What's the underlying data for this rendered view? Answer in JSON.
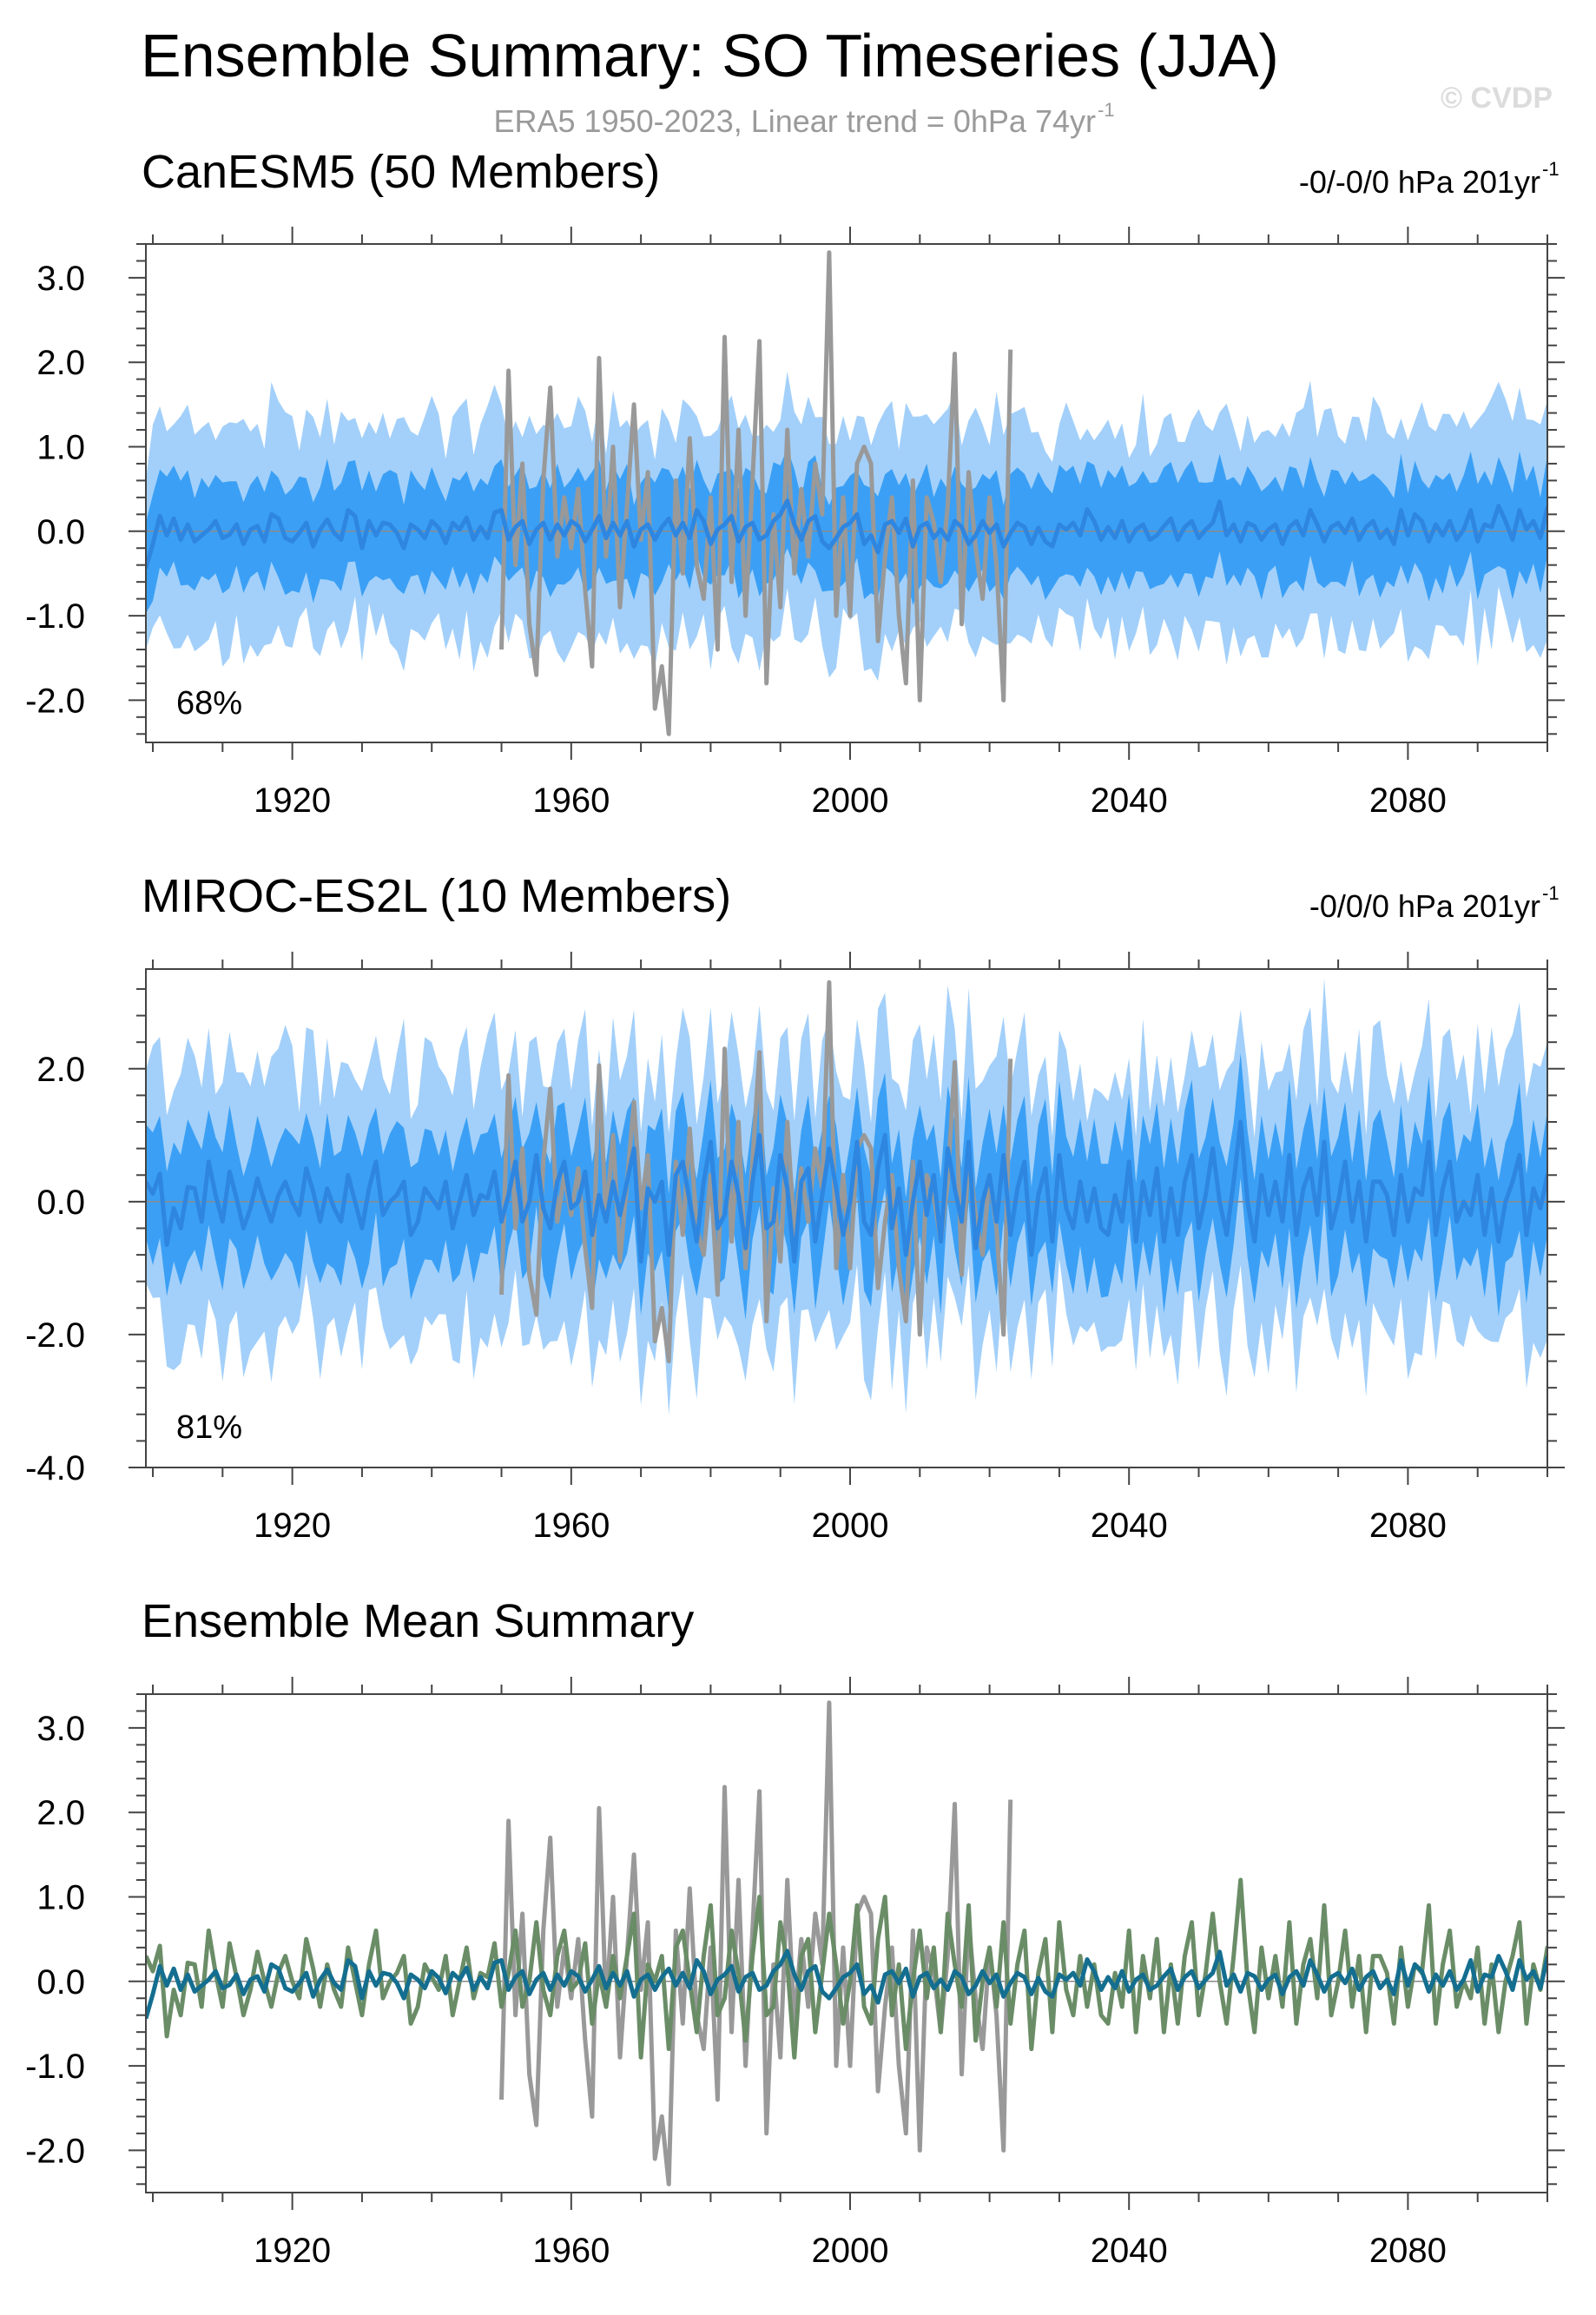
{
  "figure": {
    "title": "Ensemble Summary: SO Timeseries (JJA)",
    "subtitle": "ERA5 1950-2023, Linear trend = 0hPa 74yr",
    "subtitle_sup": "-1",
    "watermark": "© CVDP"
  },
  "colors": {
    "band_outer": "#a3d0fa",
    "band_inner": "#3ba0f5",
    "ens_mean": "#2e86e0",
    "obs": "#999999",
    "canesm5": "#146e90",
    "miroc": "#6a8d67",
    "axis": "#444444",
    "zero_line": "#8a8a8a"
  },
  "chart_data": [
    {
      "id": "canesm5",
      "type": "area",
      "title": "CanESM5 (50 Members)",
      "trend_label": "-0/-0/0 hPa 201yr",
      "trend_sup": "-1",
      "percent_label": "68%",
      "xlim": [
        1899,
        2100
      ],
      "ylim": [
        -2.5,
        3.4
      ],
      "yticks": [
        3.0,
        2.0,
        1.0,
        0.0,
        -1.0,
        -2.0
      ],
      "ytick_labels": [
        "3.0",
        "2.0",
        "1.0",
        "0.0",
        "-1.0",
        "-2.0"
      ],
      "xticks": [
        1920,
        1960,
        2000,
        2040,
        2080
      ],
      "xtick_labels": [
        "1920",
        "1960",
        "2000",
        "2040",
        "2080"
      ],
      "sd": 0.6,
      "ens_mean": [
        -0.44,
        -0.15,
        0.18,
        -0.05,
        0.15,
        -0.1,
        0.08,
        -0.12,
        -0.05,
        0.02,
        0.12,
        -0.08,
        -0.04,
        0.08,
        -0.15,
        0.02,
        0.06,
        -0.12,
        0.2,
        0.15,
        -0.08,
        -0.12,
        -0.02,
        0.1,
        -0.18,
        0.02,
        0.14,
        -0.02,
        -0.1,
        0.25,
        0.18,
        -0.2,
        0.12,
        -0.05,
        0.1,
        0.08,
        -0.02,
        -0.2,
        0.08,
        0.02,
        -0.08,
        0.12,
        0.04,
        -0.14,
        0.1,
        0.02,
        0.16,
        -0.1,
        0.05,
        -0.08,
        0.22,
        0.25,
        -0.1,
        0.05,
        0.12,
        -0.15,
        0.02,
        0.1,
        -0.1,
        0.08,
        -0.05,
        0.12,
        0.06,
        -0.12,
        0.02,
        0.18,
        -0.08,
        0.1,
        -0.05,
        0.12,
        -0.18,
        0.02,
        0.08,
        -0.1,
        0.05,
        0.15,
        -0.05,
        0.1,
        -0.08,
        0.25,
        0.12,
        -0.15,
        0.02,
        0.08,
        0.18,
        -0.12,
        0.05,
        0.1,
        -0.1,
        -0.05,
        0.12,
        0.2,
        0.36,
        0.08,
        -0.1,
        0.12,
        0.18,
        -0.12,
        -0.2,
        -0.08,
        0.05,
        0.1,
        0.2,
        -0.15,
        -0.05,
        -0.25,
        0.08,
        0.12,
        -0.02,
        0.15,
        -0.18,
        0.05,
        0.1,
        -0.08,
        0.02,
        -0.1,
        0.12,
        0.05,
        -0.15,
        -0.05,
        0.12,
        -0.02,
        0.08,
        -0.18,
        -0.02,
        0.1,
        0.05,
        -0.15,
        0.04,
        -0.12,
        -0.18,
        0.08,
        0.02,
        0.1,
        -0.05,
        0.26,
        0.12,
        -0.1,
        0.05,
        -0.08,
        0.12,
        -0.12,
        0.02,
        0.08,
        -0.1,
        -0.05,
        0.06,
        0.15,
        -0.1,
        0.05,
        0.12,
        -0.08,
        0.02,
        0.1,
        0.35,
        -0.05,
        0.08,
        -0.12,
        0.1,
        0.06,
        -0.1,
        0.02,
        0.08,
        -0.15,
        0.05,
        0.12,
        -0.05,
        0.25,
        0.08,
        -0.12,
        0.05,
        0.1,
        -0.02,
        0.15,
        -0.1,
        0.05,
        0.12,
        -0.08,
        0.02,
        -0.15,
        0.25,
        -0.05,
        0.2,
        0.12,
        -0.12,
        0.08,
        -0.05,
        0.12,
        -0.1,
        0.02,
        0.25,
        -0.12,
        0.08,
        0.05,
        0.3,
        0.12,
        -0.1,
        0.25,
        0.02,
        0.12,
        -0.08,
        0.28,
        0.22,
        -0.12,
        0.05,
        0.08,
        -0.05
      ]
    },
    {
      "id": "miroc",
      "type": "area",
      "title": "MIROC-ES2L (10 Members)",
      "trend_label": "-0/0/0 hPa 201yr",
      "trend_sup": "-1",
      "percent_label": "81%",
      "xlim": [
        1899,
        2100
      ],
      "ylim": [
        -4.0,
        3.5
      ],
      "yticks": [
        2.0,
        0.0,
        -2.0,
        -4.0
      ],
      "ytick_labels": [
        "2.0",
        "0.0",
        "-2.0",
        "-4.0"
      ],
      "xticks": [
        1920,
        1960,
        2000,
        2040,
        2080
      ],
      "xtick_labels": [
        "1920",
        "1960",
        "2000",
        "2040",
        "2080"
      ],
      "sd": 0.95,
      "ens_mean": [
        0.3,
        0.12,
        0.42,
        -0.65,
        -0.1,
        -0.4,
        0.22,
        0.2,
        -0.3,
        0.6,
        0.1,
        -0.3,
        0.45,
        0.05,
        -0.4,
        -0.1,
        0.35,
        0.0,
        -0.3,
        0.1,
        0.3,
        0.0,
        -0.2,
        0.5,
        0.15,
        -0.3,
        0.2,
        -0.1,
        -0.3,
        0.4,
        0.0,
        -0.4,
        0.2,
        0.6,
        -0.2,
        0.0,
        0.1,
        0.3,
        -0.5,
        -0.3,
        0.2,
        0.05,
        -0.1,
        0.3,
        -0.4,
        0.0,
        0.4,
        -0.2,
        0.1,
        0.05,
        0.45,
        -0.3,
        0.1,
        0.6,
        -0.3,
        0.0,
        0.7,
        -0.1,
        -0.4,
        0.3,
        0.6,
        -0.1,
        0.0,
        0.45,
        -0.5,
        0.1,
        -0.3,
        0.3,
        -0.2,
        0.3,
        0.8,
        -0.9,
        0.2,
        0.0,
        0.3,
        -0.8,
        0.4,
        0.6,
        0.0,
        -0.6,
        0.3,
        0.9,
        -0.4,
        -0.2,
        0.6,
        0.1,
        -0.7,
        0.3,
        1.0,
        -0.4,
        -0.3,
        0.7,
        0.2,
        -0.9,
        0.3,
        0.5,
        -0.6,
        0.1,
        0.8,
        0.2,
        -0.5,
        0.0,
        0.9,
        -0.3,
        -0.5,
        0.5,
        1.0,
        -0.4,
        0.2,
        -0.8,
        0.0,
        0.6,
        -0.2,
        0.4,
        -0.6,
        0.8,
        0.2,
        -0.3,
        0.9,
        -0.7,
        0.0,
        0.4,
        -0.3,
        0.7,
        -0.5,
        0.2,
        0.6,
        -0.8,
        0.1,
        0.5,
        -0.6,
        0.7,
        -0.1,
        -0.4,
        0.3,
        -0.3,
        0.2,
        -0.4,
        -0.5,
        0.1,
        -0.3,
        0.6,
        -0.6,
        0.3,
        -0.2,
        0.5,
        -0.6,
        0.2,
        -0.5,
        0.3,
        0.7,
        -0.4,
        0.1,
        0.8,
        0.0,
        -0.5,
        0.3,
        1.2,
        0.0,
        -0.6,
        0.4,
        -0.2,
        0.3,
        -0.3,
        0.7,
        -0.5,
        0.2,
        0.5,
        -0.2,
        0.9,
        -0.4,
        0.0,
        0.6,
        -0.3,
        0.3,
        -0.6,
        0.3,
        0.3,
        0.1,
        -0.5,
        0.4,
        -0.3,
        0.2,
        0.1,
        0.9,
        -0.5,
        0.2,
        0.6,
        -0.3,
        0.0,
        -0.2,
        0.4,
        -0.5,
        0.2,
        -0.6,
        0.0,
        0.3,
        0.7,
        -0.5,
        0.2,
        -0.1,
        0.4,
        -0.3,
        0.0,
        -0.6,
        0.6,
        -0.3,
        -0.3,
        -0.2
      ]
    },
    {
      "id": "summary",
      "type": "line",
      "title": "Ensemble Mean Summary",
      "xlim": [
        1899,
        2100
      ],
      "ylim": [
        -2.5,
        3.4
      ],
      "yticks": [
        3.0,
        2.0,
        1.0,
        0.0,
        -1.0,
        -2.0
      ],
      "ytick_labels": [
        "3.0",
        "2.0",
        "1.0",
        "0.0",
        "-1.0",
        "-2.0"
      ],
      "xticks": [
        1920,
        1960,
        2000,
        2040,
        2080
      ],
      "xtick_labels": [
        "1920",
        "1960",
        "2000",
        "2040",
        "2080"
      ]
    }
  ],
  "observations": {
    "x_start": 1950,
    "values": [
      -1.4,
      1.9,
      -0.4,
      0.8,
      -1.1,
      -1.7,
      0.6,
      1.7,
      -0.3,
      0.4,
      -0.2,
      0.5,
      -0.7,
      -1.6,
      2.05,
      -0.3,
      1.0,
      -0.9,
      0.3,
      1.5,
      -0.1,
      0.7,
      -2.1,
      -1.6,
      -2.4,
      0.6,
      -0.5,
      1.1,
      -0.4,
      -0.8,
      0.4,
      -1.4,
      2.3,
      -0.6,
      1.2,
      -1.0,
      0.6,
      2.25,
      -1.8,
      0.2,
      -0.9,
      1.2,
      -0.5,
      0.5,
      -0.3,
      0.8,
      0.2,
      3.3,
      -1.0,
      0.4,
      -1.0,
      0.8,
      1.0,
      0.8,
      -1.3,
      -0.3,
      0.4,
      -1.0,
      -1.8,
      0.6,
      -2.0,
      0.4,
      0.1,
      -0.6,
      0.3,
      2.1,
      -1.1,
      0.7,
      -0.2,
      -0.8,
      0.4,
      -0.4,
      -2.0,
      2.15
    ]
  }
}
